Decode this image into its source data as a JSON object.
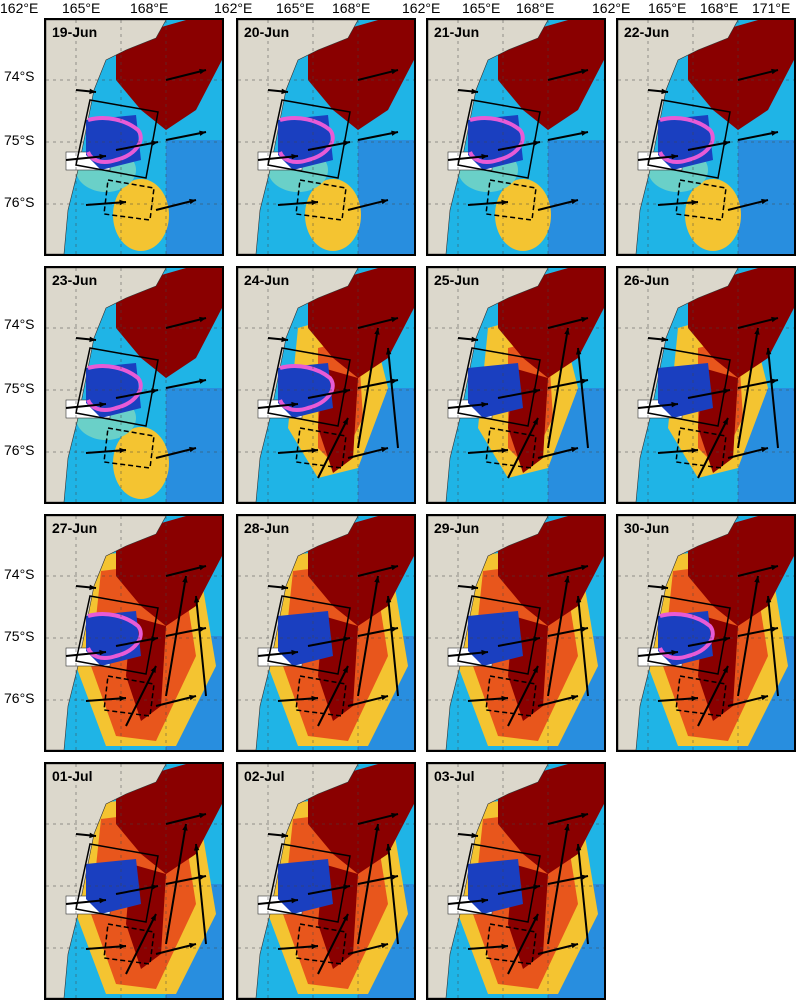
{
  "lon_labels": [
    "162°E",
    "165°E",
    "168°E",
    "162°E",
    "165°E",
    "168°E",
    "162°E",
    "165°E",
    "168°E",
    "162°E",
    "165°E",
    "168°E",
    "171°E"
  ],
  "lat_labels": [
    "74°S",
    "75°S",
    "76°S",
    "74°S",
    "75°S",
    "76°S",
    "74°S",
    "75°S",
    "76°S"
  ],
  "panels": [
    {
      "label": "19-Jun",
      "heat": "low",
      "pink": true
    },
    {
      "label": "20-Jun",
      "heat": "low",
      "pink": true
    },
    {
      "label": "21-Jun",
      "heat": "low",
      "pink": true
    },
    {
      "label": "22-Jun",
      "heat": "low",
      "pink": true
    },
    {
      "label": "23-Jun",
      "heat": "low",
      "pink": true
    },
    {
      "label": "24-Jun",
      "heat": "mid",
      "pink": true
    },
    {
      "label": "25-Jun",
      "heat": "mid",
      "pink": false
    },
    {
      "label": "26-Jun",
      "heat": "mid",
      "pink": false
    },
    {
      "label": "27-Jun",
      "heat": "high",
      "pink": true
    },
    {
      "label": "28-Jun",
      "heat": "high",
      "pink": false
    },
    {
      "label": "29-Jun",
      "heat": "high",
      "pink": false
    },
    {
      "label": "30-Jun",
      "heat": "high",
      "pink": true
    },
    {
      "label": "01-Jul",
      "heat": "high",
      "pink": false
    },
    {
      "label": "02-Jul",
      "heat": "high",
      "pink": false
    },
    {
      "label": "03-Jul",
      "heat": "high",
      "pink": false
    }
  ],
  "colors": {
    "land": "#dcd8cc",
    "ocean_low": "#1fb4e6",
    "ocean_mid": "#6ad0c8",
    "warm": "#f4c431",
    "hot": "#e8561c",
    "darkred": "#8a0000",
    "pink": "#e85bd6",
    "arrow": "#000000"
  }
}
